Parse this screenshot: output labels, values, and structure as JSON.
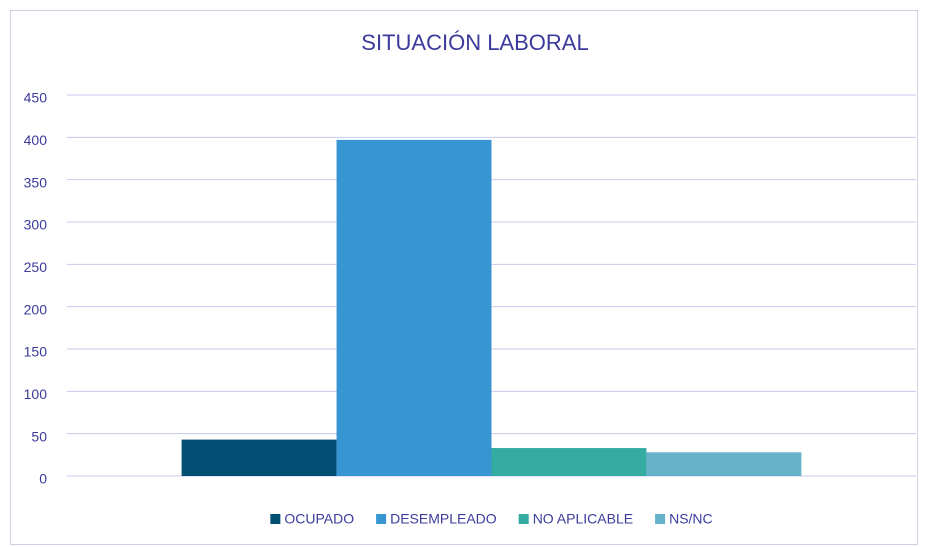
{
  "chart_data": {
    "type": "bar",
    "title": "SITUACIÓN LABORAL",
    "categories": [
      null
    ],
    "series": [
      {
        "name": "OCUPADO",
        "color": "#014f73",
        "values": [
          43
        ]
      },
      {
        "name": "DESEMPLEADO",
        "color": "#3795d1",
        "values": [
          397
        ]
      },
      {
        "name": "NO APLICABLE",
        "color": "#34aca1",
        "values": [
          33
        ]
      },
      {
        "name": "NS/NC",
        "color": "#65b2ca",
        "values": [
          28
        ]
      }
    ],
    "ylim": [
      0,
      450
    ],
    "yticks": [
      0,
      50,
      100,
      150,
      200,
      250,
      300,
      350,
      400,
      450
    ],
    "grid": true,
    "legend": "bottom"
  }
}
